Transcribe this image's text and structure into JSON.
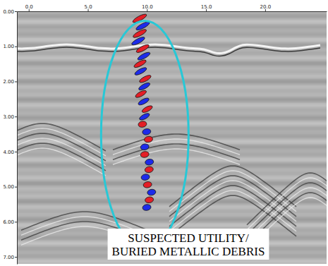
{
  "chart_data": {
    "type": "radargram",
    "annotations": [
      "SUSPECTED UTILITY/",
      "BURIED METALLIC DEBRIS"
    ],
    "xlim": [
      -1,
      25.2
    ],
    "xticks": [
      {
        "value": 0,
        "label": "0.0"
      },
      {
        "value": 5,
        "label": "5.0"
      },
      {
        "value": 10,
        "label": "10.0"
      },
      {
        "value": 15,
        "label": "15.0"
      },
      {
        "value": 20,
        "label": "20.0"
      }
    ],
    "ylim": [
      0,
      7.2
    ],
    "yticks": [
      {
        "value": 0,
        "label": "0.00"
      },
      {
        "value": 1,
        "label": "1.00"
      },
      {
        "value": 2,
        "label": "2.00"
      },
      {
        "value": 3,
        "label": "3.00"
      },
      {
        "value": 4,
        "label": "4.00"
      },
      {
        "value": 5,
        "label": "5.00"
      },
      {
        "value": 6,
        "label": "6.00"
      },
      {
        "value": 7,
        "label": "7.00"
      }
    ],
    "grid": false
  }
}
